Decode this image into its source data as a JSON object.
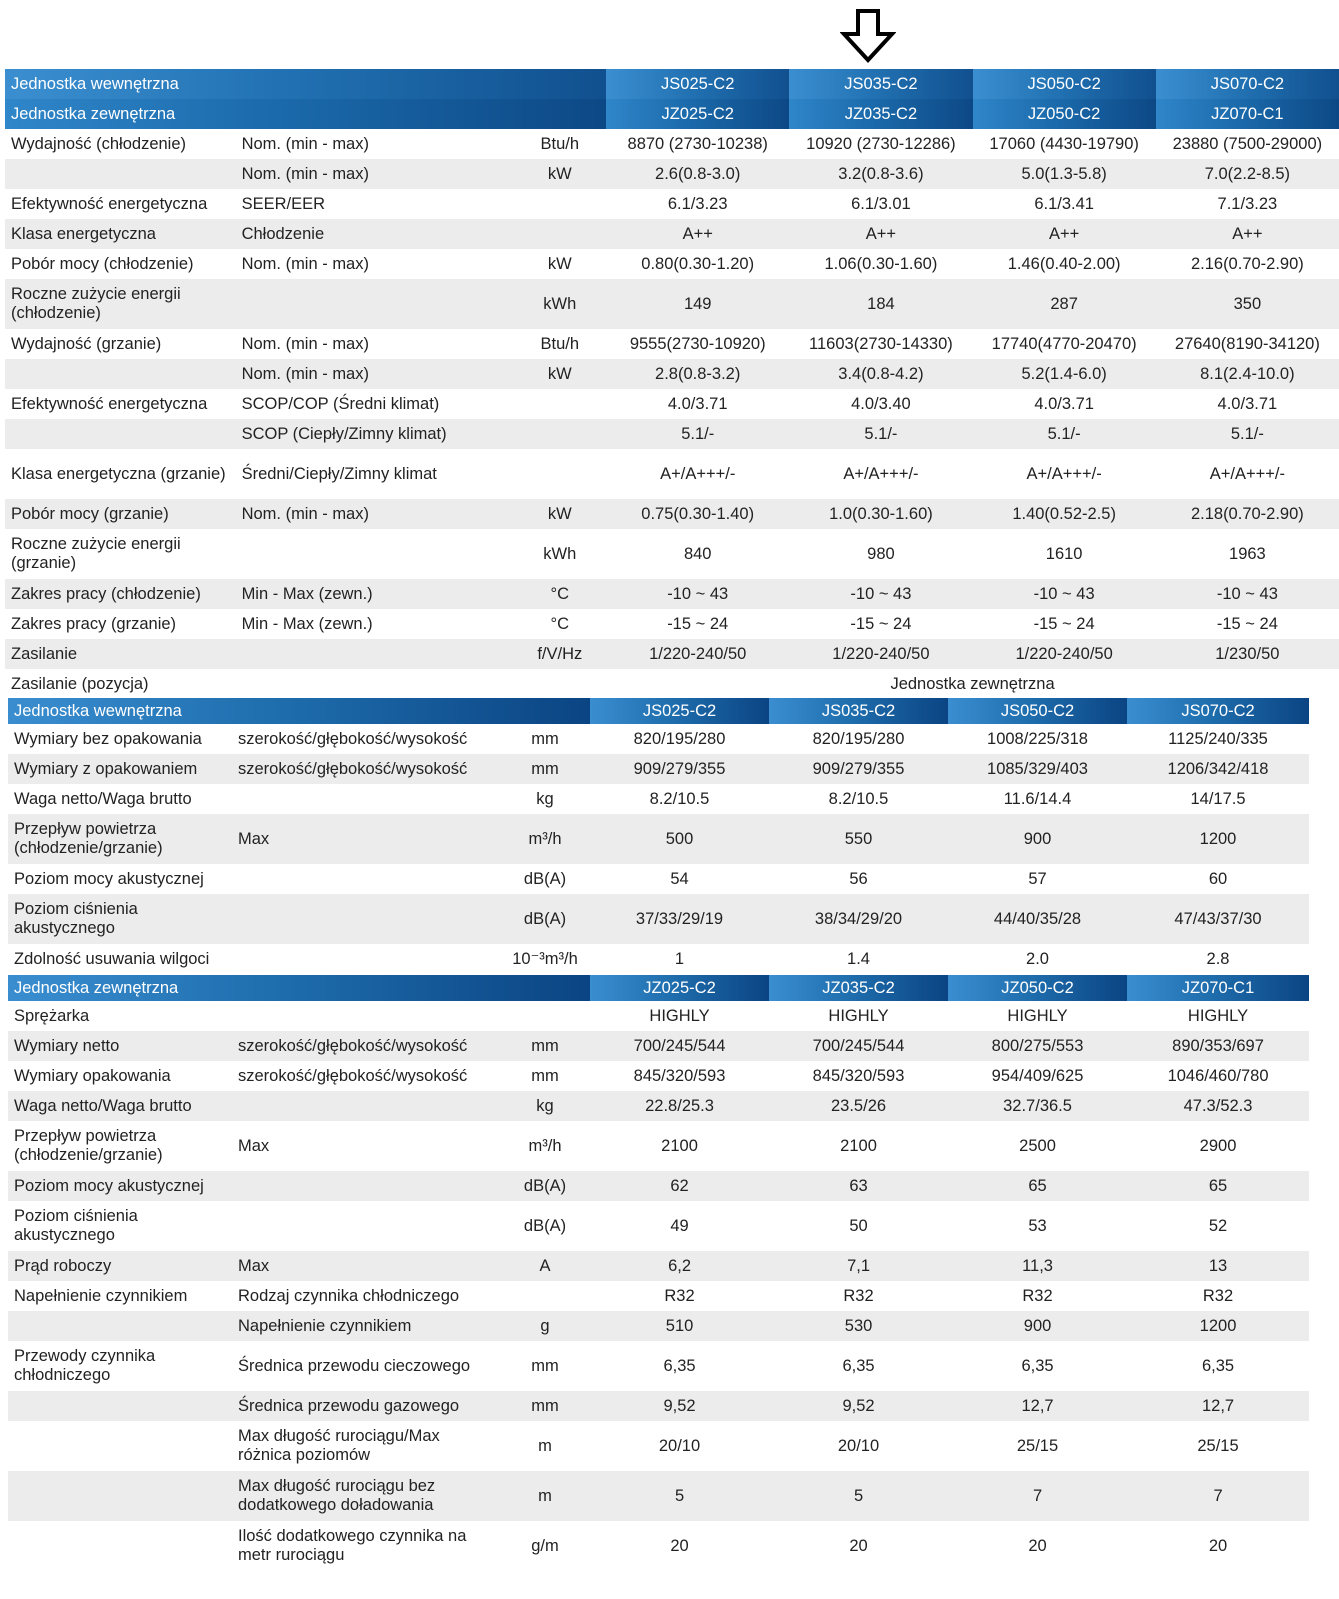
{
  "arrow_icon": "down-arrow-icon",
  "header": {
    "indoor_label": "Jednostka wewnętrzna",
    "outdoor_label": "Jednostka zewnętrzna",
    "indoor_models": [
      "JS025-C2",
      "JS035-C2",
      "JS050-C2",
      "JS070-C2"
    ],
    "outdoor_models": [
      "JZ025-C2",
      "JZ035-C2",
      "JZ050-C2",
      "JZ070-C1"
    ]
  },
  "general_rows": [
    {
      "c1": "Wydajność (chłodzenie)",
      "c2": "Nom. (min - max)",
      "c3": "Btu/h",
      "vals": [
        "8870 (2730-10238)",
        "10920 (2730-12286)",
        "17060 (4430-19790)",
        "23880 (7500-29000)"
      ]
    },
    {
      "c1": "",
      "c2": "Nom. (min - max)",
      "c3": "kW",
      "vals": [
        "2.6(0.8-3.0)",
        "3.2(0.8-3.6)",
        "5.0(1.3-5.8)",
        "7.0(2.2-8.5)"
      ]
    },
    {
      "c1": "Efektywność energetyczna",
      "c2": "SEER/EER",
      "c3": "",
      "vals": [
        "6.1/3.23",
        "6.1/3.01",
        "6.1/3.41",
        "7.1/3.23"
      ]
    },
    {
      "c1": "Klasa energetyczna",
      "c2": "Chłodzenie",
      "c3": "",
      "vals": [
        "A++",
        "A++",
        "A++",
        "A++"
      ]
    },
    {
      "c1": "Pobór mocy (chłodzenie)",
      "c2": "Nom. (min - max)",
      "c3": "kW",
      "vals": [
        "0.80(0.30-1.20)",
        "1.06(0.30-1.60)",
        "1.46(0.40-2.00)",
        "2.16(0.70-2.90)"
      ]
    },
    {
      "c1": "Roczne zużycie energii (chłodzenie)",
      "c2": "",
      "c3": "kWh",
      "vals": [
        "149",
        "184",
        "287",
        "350"
      ]
    },
    {
      "c1": "Wydajność (grzanie)",
      "c2": "Nom. (min - max)",
      "c3": "Btu/h",
      "vals": [
        "9555(2730-10920)",
        "11603(2730-14330)",
        "17740(4770-20470)",
        "27640(8190-34120)"
      ]
    },
    {
      "c1": "",
      "c2": "Nom. (min - max)",
      "c3": "kW",
      "vals": [
        "2.8(0.8-3.2)",
        "3.4(0.8-4.2)",
        "5.2(1.4-6.0)",
        "8.1(2.4-10.0)"
      ]
    },
    {
      "c1": "Efektywność energetyczna",
      "c2": "SCOP/COP (Średni klimat)",
      "c3": "",
      "vals": [
        "4.0/3.71",
        "4.0/3.40",
        "4.0/3.71",
        "4.0/3.71"
      ]
    },
    {
      "c1": "",
      "c2": "SCOP (Ciepły/Zimny klimat)",
      "c3": "",
      "vals": [
        "5.1/-",
        "5.1/-",
        "5.1/-",
        "5.1/-"
      ]
    },
    {
      "c1": "Klasa energetyczna (grzanie)",
      "c2": "Średni/Ciepły/Zimny klimat",
      "c3": "",
      "vals": [
        "A+/A+++/-",
        "A+/A+++/-",
        "A+/A+++/-",
        "A+/A+++/-"
      ]
    },
    {
      "c1": "Pobór mocy (grzanie)",
      "c2": "Nom. (min - max)",
      "c3": "kW",
      "vals": [
        "0.75(0.30-1.40)",
        "1.0(0.30-1.60)",
        "1.40(0.52-2.5)",
        "2.18(0.70-2.90)"
      ]
    },
    {
      "c1": "Roczne zużycie energii (grzanie)",
      "c2": "",
      "c3": "kWh",
      "vals": [
        "840",
        "980",
        "1610",
        "1963"
      ]
    },
    {
      "c1": "Zakres pracy (chłodzenie)",
      "c2": "Min - Max (zewn.)",
      "c3": "°C",
      "vals": [
        "-10 ~ 43",
        "-10 ~ 43",
        "-10 ~ 43",
        "-10 ~ 43"
      ]
    },
    {
      "c1": "Zakres pracy (grzanie)",
      "c2": "Min - Max (zewn.)",
      "c3": "°C",
      "vals": [
        "-15 ~ 24",
        "-15 ~ 24",
        "-15 ~ 24",
        "-15 ~ 24"
      ]
    },
    {
      "c1": "Zasilanie",
      "c2": "",
      "c3": "f/V/Hz",
      "vals": [
        "1/220-240/50",
        "1/220-240/50",
        "1/220-240/50",
        "1/230/50"
      ]
    }
  ],
  "power_position": {
    "label": "Zasilanie (pozycja)",
    "value": "Jednostka zewnętrzna"
  },
  "indoor_section": {
    "title": "Jednostka wewnętrzna",
    "models": [
      "JS025-C2",
      "JS035-C2",
      "JS050-C2",
      "JS070-C2"
    ],
    "rows": [
      {
        "c1": "Wymiary bez opakowania",
        "c2": "szerokość/głębokość/wysokość",
        "c3": "mm",
        "vals": [
          "820/195/280",
          "820/195/280",
          "1008/225/318",
          "1125/240/335"
        ]
      },
      {
        "c1": "Wymiary z opakowaniem",
        "c2": "szerokość/głębokość/wysokość",
        "c3": "mm",
        "vals": [
          "909/279/355",
          "909/279/355",
          "1085/329/403",
          "1206/342/418"
        ]
      },
      {
        "c1": "Waga netto/Waga brutto",
        "c2": "",
        "c3": "kg",
        "vals": [
          "8.2/10.5",
          "8.2/10.5",
          "11.6/14.4",
          "14/17.5"
        ]
      },
      {
        "c1": "Przepływ powietrza (chłodzenie/grzanie)",
        "c2": "Max",
        "c3": "m³/h",
        "vals": [
          "500",
          "550",
          "900",
          "1200"
        ]
      },
      {
        "c1": "Poziom mocy akustycznej",
        "c2": "",
        "c3": "dB(A)",
        "vals": [
          "54",
          "56",
          "57",
          "60"
        ]
      },
      {
        "c1": "Poziom ciśnienia akustycznego",
        "c2": "",
        "c3": "dB(A)",
        "vals": [
          "37/33/29/19",
          "38/34/29/20",
          "44/40/35/28",
          "47/43/37/30"
        ]
      },
      {
        "c1": "Zdolność usuwania wilgoci",
        "c2": "",
        "c3": "10⁻³m³/h",
        "vals": [
          "1",
          "1.4",
          "2.0",
          "2.8"
        ]
      }
    ]
  },
  "outdoor_section": {
    "title": "Jednostka zewnętrzna",
    "models": [
      "JZ025-C2",
      "JZ035-C2",
      "JZ050-C2",
      "JZ070-C1"
    ],
    "rows": [
      {
        "c1": "Sprężarka",
        "c2": "",
        "c3": "",
        "vals": [
          "HIGHLY",
          "HIGHLY",
          "HIGHLY",
          "HIGHLY"
        ]
      },
      {
        "c1": "Wymiary netto",
        "c2": "szerokość/głębokość/wysokość",
        "c3": "mm",
        "vals": [
          "700/245/544",
          "700/245/544",
          "800/275/553",
          "890/353/697"
        ]
      },
      {
        "c1": "Wymiary opakowania",
        "c2": "szerokość/głębokość/wysokość",
        "c3": "mm",
        "vals": [
          "845/320/593",
          "845/320/593",
          "954/409/625",
          "1046/460/780"
        ]
      },
      {
        "c1": "Waga netto/Waga brutto",
        "c2": "",
        "c3": "kg",
        "vals": [
          "22.8/25.3",
          "23.5/26",
          "32.7/36.5",
          "47.3/52.3"
        ]
      },
      {
        "c1": "Przepływ powietrza (chłodzenie/grzanie)",
        "c2": "Max",
        "c3": "m³/h",
        "vals": [
          "2100",
          "2100",
          "2500",
          "2900"
        ]
      },
      {
        "c1": "Poziom mocy akustycznej",
        "c2": "",
        "c3": "dB(A)",
        "vals": [
          "62",
          "63",
          "65",
          "65"
        ]
      },
      {
        "c1": "Poziom ciśnienia akustycznego",
        "c2": "",
        "c3": "dB(A)",
        "vals": [
          "49",
          "50",
          "53",
          "52"
        ]
      },
      {
        "c1": "Prąd roboczy",
        "c2": "Max",
        "c3": "A",
        "vals": [
          "6,2",
          "7,1",
          "11,3",
          "13"
        ]
      },
      {
        "c1": "Napełnienie czynnikiem",
        "c2": "Rodzaj czynnika chłodniczego",
        "c3": "",
        "vals": [
          "R32",
          "R32",
          "R32",
          "R32"
        ]
      },
      {
        "c1": "",
        "c2": "Napełnienie czynnikiem",
        "c3": "g",
        "vals": [
          "510",
          "530",
          "900",
          "1200"
        ]
      },
      {
        "c1": "Przewody czynnika chłodniczego",
        "c2": "Średnica przewodu cieczowego",
        "c3": "mm",
        "vals": [
          "6,35",
          "6,35",
          "6,35",
          "6,35"
        ]
      },
      {
        "c1": "",
        "c2": "Średnica przewodu gazowego",
        "c3": "mm",
        "vals": [
          "9,52",
          "9,52",
          "12,7",
          "12,7"
        ]
      },
      {
        "c1": "",
        "c2": "Max długość rurociągu/Max różnica poziomów",
        "c3": "m",
        "vals": [
          "20/10",
          "20/10",
          "25/15",
          "25/15"
        ]
      },
      {
        "c1": "",
        "c2": "Max długość rurociągu bez dodatkowego doładowania",
        "c3": "m",
        "vals": [
          "5",
          "5",
          "7",
          "7"
        ]
      },
      {
        "c1": "",
        "c2": "Ilość dodatkowego czynnika na metr rurociągu",
        "c3": "g/m",
        "vals": [
          "20",
          "20",
          "20",
          "20"
        ]
      }
    ]
  }
}
